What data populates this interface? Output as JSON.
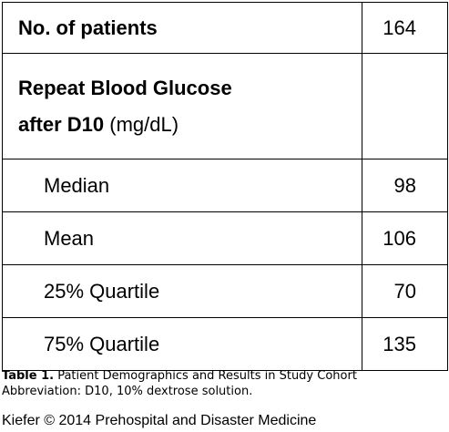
{
  "table": {
    "header": {
      "label": "No. of patients",
      "value": "164"
    },
    "section": {
      "label_line1": "Repeat Blood Glucose",
      "label_line2_bold": "after D10",
      "label_line2_unit": "(mg/dL)",
      "value": ""
    },
    "rows": [
      {
        "label": "Median",
        "value": "98"
      },
      {
        "label": "Mean",
        "value": "106"
      },
      {
        "label": "25% Quartile",
        "value": "70"
      },
      {
        "label": "75% Quartile",
        "value": "135"
      }
    ]
  },
  "caption": {
    "table_number": "Table 1.",
    "title": "Patient Demographics and Results in Study Cohort",
    "abbreviation": "Abbreviation: D10, 10% dextrose solution."
  },
  "credit": "Kiefer © 2014 Prehospital and Disaster Medicine"
}
